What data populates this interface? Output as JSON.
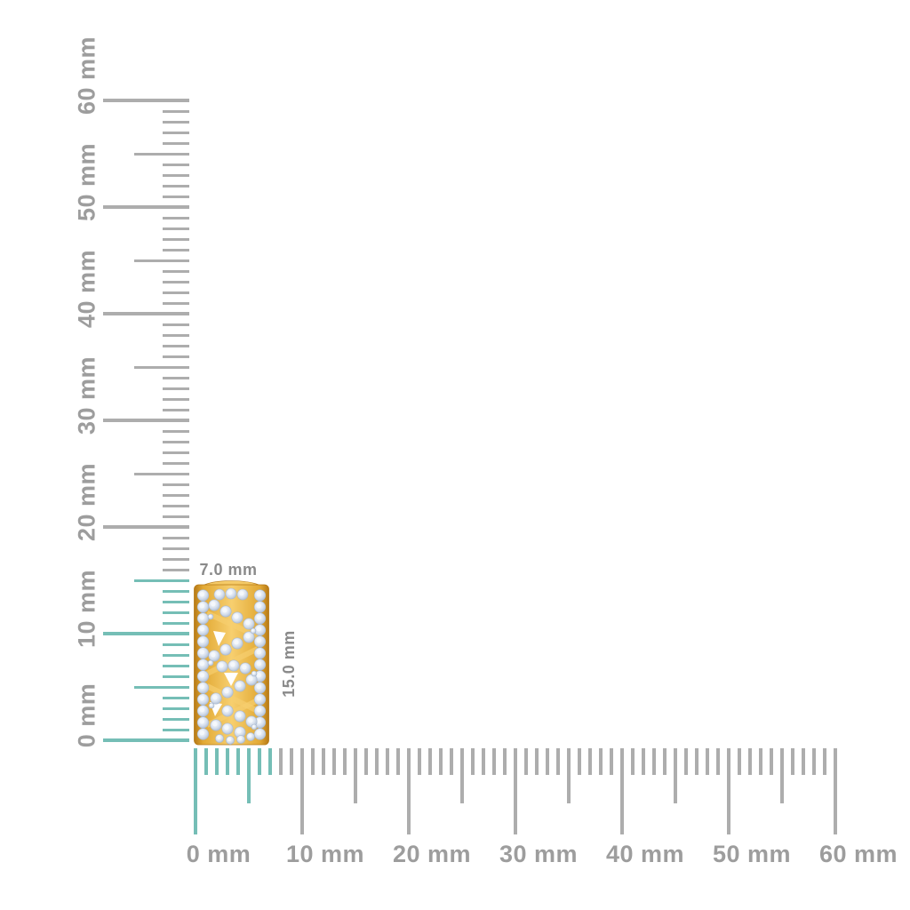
{
  "page": {
    "background": "#FFFFFF"
  },
  "product": {
    "description": "Yellow gold openwork bar pendant pave-set with round diamonds in a zigzag lattice pattern",
    "width_label": "7.0 mm",
    "height_label": "15.0 mm",
    "width_mm": 7.0,
    "height_mm": 15.0
  },
  "vertical_ruler": {
    "unit": "mm",
    "min_mm": 0,
    "max_mm": 60,
    "major_step_mm": 10,
    "mid_step_mm": 5,
    "minor_step_mm": 1,
    "labels": [
      "0 mm",
      "10 mm",
      "20 mm",
      "30 mm",
      "40 mm",
      "50 mm",
      "60 mm"
    ],
    "highlighted_extent_mm": 15
  },
  "horizontal_ruler": {
    "unit": "mm",
    "min_mm": 0,
    "max_mm": 60,
    "major_step_mm": 10,
    "mid_step_mm": 5,
    "minor_step_mm": 1,
    "labels": [
      "0 mm",
      "10 mm",
      "20 mm",
      "30 mm",
      "40 mm",
      "50 mm",
      "60 mm"
    ],
    "highlighted_extent_mm": 7
  },
  "colors": {
    "tick_gray": "#ADADAD",
    "highlight_teal": "#75BEB6",
    "ruler_label_gray": "#9D9D9D",
    "dimension_label_gray": "#8A8A8A",
    "gold_light": "#F7CF6F",
    "gold_base": "#E2A935",
    "gold_dark": "#B67916",
    "diamond_light": "#F5F8FC",
    "diamond_mid": "#D8E1EE",
    "diamond_dark": "#A8B8CF"
  }
}
